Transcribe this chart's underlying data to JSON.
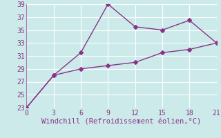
{
  "xlabel": "Windchill (Refroidissement éolien,°C)",
  "background_color": "#cceaea",
  "grid_color": "#ffffff",
  "line_color": "#883388",
  "xlim": [
    0,
    21
  ],
  "ylim": [
    23,
    39
  ],
  "xticks": [
    0,
    3,
    6,
    9,
    12,
    15,
    18,
    21
  ],
  "yticks": [
    23,
    25,
    27,
    29,
    31,
    33,
    35,
    37,
    39
  ],
  "line1_x": [
    0,
    3,
    6,
    9,
    12,
    15,
    18,
    21
  ],
  "line1_y": [
    23,
    28,
    29,
    29.5,
    30,
    31.5,
    32,
    33
  ],
  "line2_x": [
    0,
    3,
    6,
    9,
    12,
    15,
    18,
    21
  ],
  "line2_y": [
    23,
    28,
    31.5,
    39,
    35.5,
    35,
    36.5,
    33
  ],
  "marker": "D",
  "marker_size": 3,
  "linewidth": 1.0,
  "xlabel_fontsize": 7.5,
  "tick_fontsize": 7
}
